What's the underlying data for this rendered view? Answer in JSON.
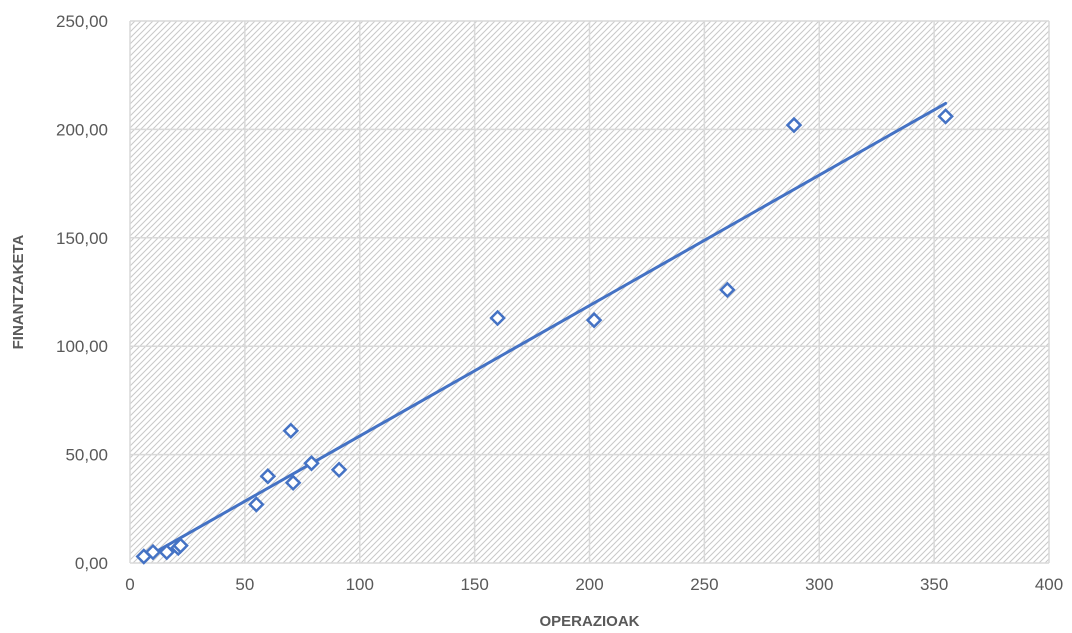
{
  "chart_data": {
    "type": "scatter",
    "title": "",
    "xlabel": "OPERAZIOAK",
    "ylabel": "FINANTZAKETA",
    "xlim": [
      0,
      400
    ],
    "ylim": [
      0,
      250
    ],
    "x_ticks": [
      0,
      50,
      100,
      150,
      200,
      250,
      300,
      350,
      400
    ],
    "x_tick_labels": [
      "0",
      "50",
      "100",
      "150",
      "200",
      "250",
      "300",
      "350",
      "400"
    ],
    "y_ticks": [
      0,
      50,
      100,
      150,
      200,
      250
    ],
    "y_tick_labels": [
      "0,00",
      "50,00",
      "100,00",
      "150,00",
      "200,00",
      "250,00"
    ],
    "grid": true,
    "legend": "none",
    "series": [
      {
        "marker": "diamond-open",
        "color": "#4472c4",
        "points": [
          {
            "x": 6,
            "y": 3
          },
          {
            "x": 10,
            "y": 5
          },
          {
            "x": 16,
            "y": 5
          },
          {
            "x": 21,
            "y": 7
          },
          {
            "x": 22,
            "y": 8
          },
          {
            "x": 55,
            "y": 27
          },
          {
            "x": 60,
            "y": 40
          },
          {
            "x": 70,
            "y": 61
          },
          {
            "x": 71,
            "y": 37
          },
          {
            "x": 79,
            "y": 46
          },
          {
            "x": 91,
            "y": 43
          },
          {
            "x": 160,
            "y": 113
          },
          {
            "x": 202,
            "y": 112
          },
          {
            "x": 260,
            "y": 126
          },
          {
            "x": 289,
            "y": 202
          },
          {
            "x": 355,
            "y": 206
          }
        ]
      }
    ],
    "trendline": {
      "type": "linear",
      "color": "#4472c4",
      "from": {
        "x": 6,
        "y": 2
      },
      "to": {
        "x": 355,
        "y": 212
      }
    }
  }
}
